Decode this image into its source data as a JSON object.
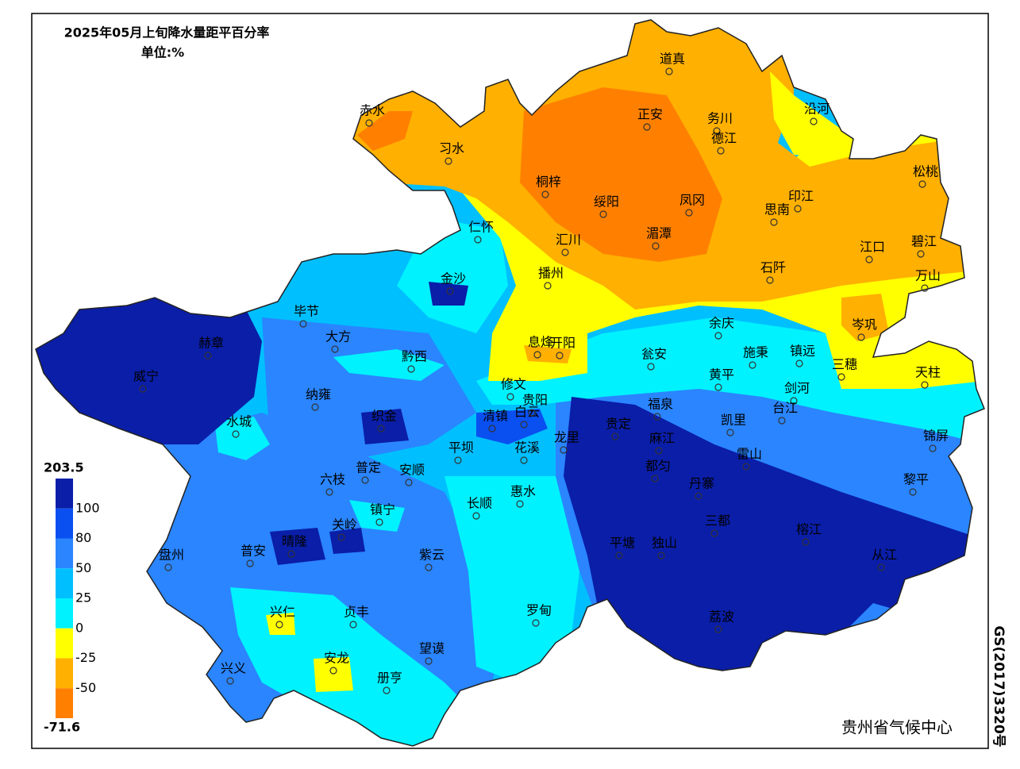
{
  "title": "2025年05月上旬降水量距平百分率",
  "unit": "单位:%",
  "legend": {
    "ticks": [
      203.5,
      100,
      80,
      50,
      25,
      0,
      -25,
      -50,
      -71.6
    ],
    "colors": [
      "#0a1ea8",
      "#0a4ff0",
      "#2a85ff",
      "#00bfff",
      "#00f2ff",
      "#ffff00",
      "#ffb000",
      "#ff8000"
    ]
  },
  "stations": [
    "赤水",
    "习水",
    "道真",
    "正安",
    "务川",
    "沿河",
    "德江",
    "桐梓",
    "绥阳",
    "凤冈",
    "思南",
    "印江",
    "松桃",
    "仁怀",
    "汇川",
    "湄潭",
    "江口",
    "碧江",
    "石阡",
    "播州",
    "金沙",
    "万山",
    "毕节",
    "大方",
    "黔西",
    "息烽",
    "开阳",
    "瓮安",
    "余庆",
    "施秉",
    "镇远",
    "岑巩",
    "三穗",
    "天柱",
    "赫章",
    "威宁",
    "纳雍",
    "织金",
    "修文",
    "白云",
    "贵阳",
    "清镇",
    "福泉",
    "黄平",
    "剑河",
    "台江",
    "凯里",
    "锦屏",
    "水城",
    "贵定",
    "麻江",
    "龙里",
    "平坝",
    "花溪",
    "雷山",
    "都匀",
    "普定",
    "安顺",
    "六枝",
    "黎平",
    "长顺",
    "惠水",
    "丹寨",
    "镇宁",
    "关岭",
    "晴隆",
    "普安",
    "盘州",
    "三都",
    "榕江",
    "从江",
    "平塘",
    "独山",
    "紫云",
    "罗甸",
    "兴仁",
    "贞丰",
    "荔波",
    "望谟",
    "兴义",
    "安龙",
    "册亨"
  ],
  "footer": "贵州省气候中心",
  "code": "GS(2017)3320号"
}
